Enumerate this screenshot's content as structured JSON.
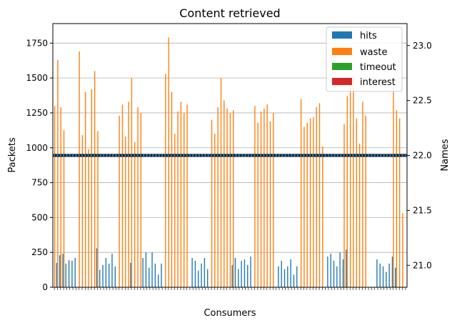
{
  "chart_data": {
    "type": "bar",
    "title": "Content retrieved",
    "xlabel": "Consumers",
    "ylabel": "Packets",
    "ylabel_right": "Names",
    "ylim": [
      0,
      1890
    ],
    "ylim_right": [
      20.8,
      23.2
    ],
    "yticks": [
      0,
      250,
      500,
      750,
      1000,
      1250,
      1500,
      1750
    ],
    "yticks_right": [
      21.0,
      21.5,
      22.0,
      22.5,
      23.0
    ],
    "yticks_right_labels": [
      "21.0",
      "21.5",
      "22.0",
      "22.5",
      "23.0"
    ],
    "grid": "horizontal",
    "legend_position": "top-right",
    "colors": {
      "hits": "#1f77b4",
      "waste": "#ff7f0e",
      "timeout": "#2ca02c",
      "interest": "#d62728",
      "names_line": "#000000",
      "names_markers": "#1f77b4"
    },
    "series": [
      {
        "name": "hits",
        "values": [
          0,
          175,
          230,
          240,
          170,
          195,
          190,
          210,
          0,
          0,
          0,
          0,
          0,
          0,
          280,
          125,
          160,
          210,
          170,
          240,
          150,
          0,
          0,
          0,
          0,
          175,
          0,
          0,
          0,
          210,
          250,
          140,
          250,
          170,
          90,
          170,
          0,
          0,
          0,
          0,
          0,
          0,
          0,
          0,
          0,
          210,
          190,
          120,
          170,
          210,
          130,
          0,
          0,
          0,
          0,
          0,
          0,
          0,
          160,
          210,
          130,
          190,
          200,
          160,
          220,
          0,
          0,
          0,
          0,
          0,
          0,
          0,
          0,
          150,
          190,
          130,
          150,
          200,
          90,
          150,
          0,
          0,
          0,
          0,
          0,
          0,
          0,
          0,
          0,
          220,
          240,
          190,
          150,
          250,
          200,
          270,
          0,
          0,
          0,
          0,
          0,
          0,
          0,
          0,
          0,
          200,
          170,
          150,
          110,
          170,
          220,
          140,
          0,
          0,
          0
        ]
      },
      {
        "name": "waste",
        "values": [
          1300,
          1630,
          1290,
          1125,
          0,
          0,
          0,
          0,
          1690,
          1090,
          1400,
          990,
          1420,
          1550,
          1120,
          0,
          0,
          0,
          0,
          0,
          0,
          1230,
          1310,
          1080,
          1330,
          1500,
          1040,
          1290,
          1250,
          0,
          0,
          0,
          0,
          0,
          0,
          0,
          1530,
          1790,
          1400,
          1100,
          1260,
          1330,
          1250,
          1310,
          0,
          0,
          0,
          0,
          0,
          0,
          0,
          1200,
          1100,
          1290,
          1500,
          1340,
          1280,
          1250,
          1270,
          0,
          0,
          0,
          0,
          0,
          0,
          1300,
          1180,
          1260,
          1280,
          1310,
          1190,
          1250,
          0,
          0,
          0,
          0,
          0,
          0,
          0,
          0,
          1350,
          1150,
          1180,
          1210,
          1220,
          1290,
          1320,
          1010,
          0,
          0,
          0,
          0,
          0,
          0,
          1170,
          1370,
          1500,
          1520,
          1210,
          1030,
          1330,
          1230,
          0,
          0,
          0,
          0,
          0,
          0,
          0,
          0,
          1460,
          1270,
          1210,
          530
        ]
      },
      {
        "name": "timeout",
        "values": []
      },
      {
        "name": "interest",
        "values": []
      }
    ],
    "names": {
      "value": 22.0
    }
  }
}
